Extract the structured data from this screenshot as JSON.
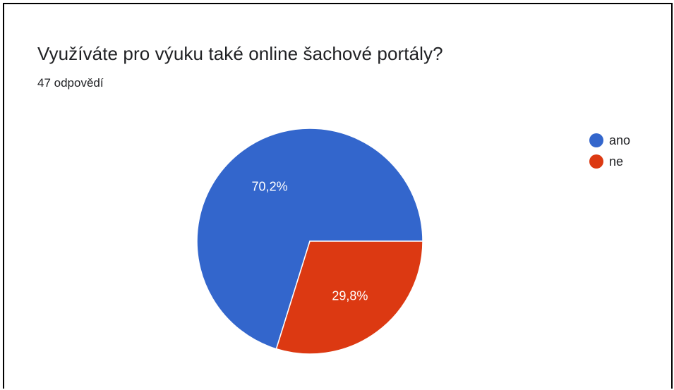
{
  "header": {
    "title": "Využíváte pro výuku také online šachové portály?",
    "subtitle": "47 odpovědí"
  },
  "chart_data": {
    "type": "pie",
    "title": "Využíváte pro výuku také online šachové portály?",
    "subtitle": "47 odpovědí",
    "slices": [
      {
        "label": "ano",
        "value": 70.2,
        "display": "70,2%",
        "color": "#3366cc"
      },
      {
        "label": "ne",
        "value": 29.8,
        "display": "29,8%",
        "color": "#dc3912"
      }
    ],
    "legend_position": "right-top"
  }
}
